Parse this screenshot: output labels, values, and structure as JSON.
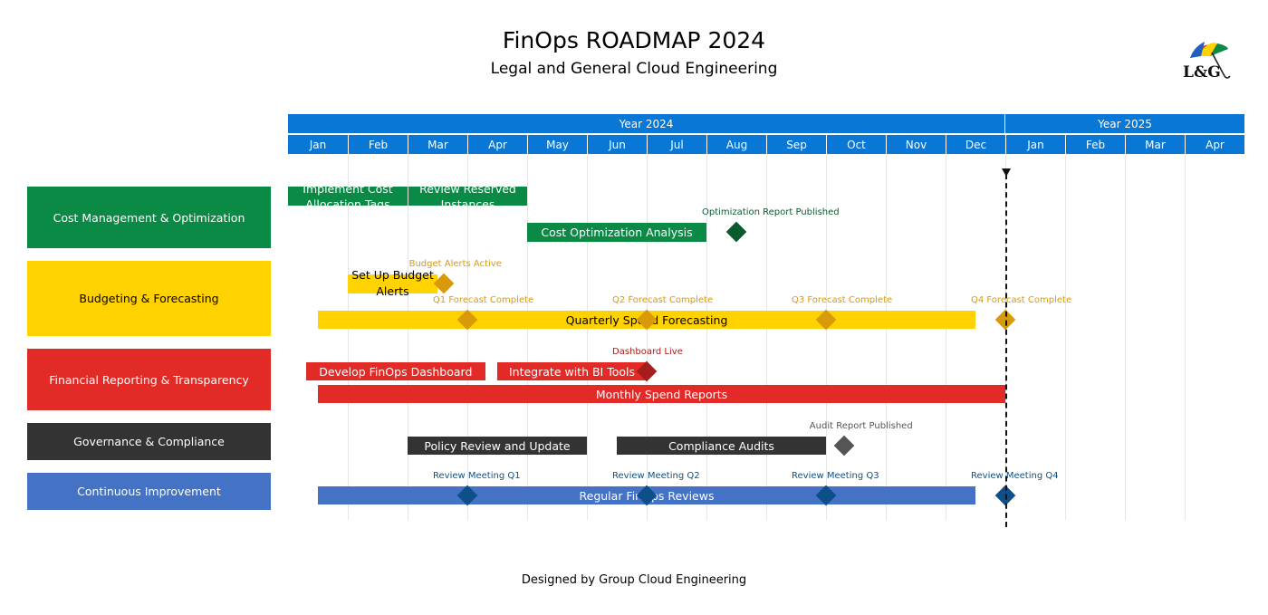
{
  "header": {
    "title": "FinOps ROADMAP 2024",
    "subtitle": "Legal and General Cloud Engineering",
    "logo_text": "L&G"
  },
  "footer": {
    "text": "Designed by Group Cloud Engineering"
  },
  "timeline": {
    "years": [
      {
        "label": "Year 2024",
        "months": 12
      },
      {
        "label": "Year 2025",
        "months": 4
      }
    ],
    "months": [
      "Jan",
      "Feb",
      "Mar",
      "Apr",
      "May",
      "Jun",
      "Jul",
      "Aug",
      "Sep",
      "Oct",
      "Nov",
      "Dec",
      "Jan",
      "Feb",
      "Mar",
      "Apr"
    ],
    "today_marker_month_index": 12
  },
  "categories": [
    {
      "id": "cost",
      "label": "Cost Management & Optimization",
      "color": "#0a8a45",
      "text_color": "#ffffff"
    },
    {
      "id": "budget",
      "label": "Budgeting & Forecasting",
      "color": "#ffd200",
      "text_color": "#000000"
    },
    {
      "id": "reporting",
      "label": "Financial Reporting & Transparency",
      "color": "#e22b26",
      "text_color": "#ffffff"
    },
    {
      "id": "governance",
      "label": "Governance & Compliance",
      "color": "#333333",
      "text_color": "#ffffff"
    },
    {
      "id": "improvement",
      "label": "Continuous Improvement",
      "color": "#4472c4",
      "text_color": "#ffffff"
    }
  ],
  "tasks": [
    {
      "id": "t1",
      "label": "Implement Cost Allocation Tags",
      "start": 0,
      "end": 2,
      "color": "#0a8a45",
      "text_color": "#ffffff"
    },
    {
      "id": "t2",
      "label": "Review Reserved Instances",
      "start": 2,
      "end": 4,
      "color": "#0a8a45",
      "text_color": "#ffffff"
    },
    {
      "id": "t3",
      "label": "Cost Optimization Analysis",
      "start": 4,
      "end": 7,
      "color": "#0a8a45",
      "text_color": "#ffffff"
    },
    {
      "id": "t4",
      "label": "Set Up Budget Alerts",
      "start": 1,
      "end": 2.5,
      "color": "#ffd200",
      "text_color": "#000000"
    },
    {
      "id": "t5",
      "label": "Quarterly Spend Forecasting",
      "start": 0.5,
      "end": 11.5,
      "color": "#ffd200",
      "text_color": "#000000"
    },
    {
      "id": "t6",
      "label": "Develop FinOps Dashboard",
      "start": 0.3,
      "end": 3.3,
      "color": "#e22b26",
      "text_color": "#ffffff"
    },
    {
      "id": "t7",
      "label": "Integrate with BI Tools",
      "start": 3.5,
      "end": 6,
      "color": "#e22b26",
      "text_color": "#ffffff"
    },
    {
      "id": "t8",
      "label": "Monthly Spend Reports",
      "start": 0.5,
      "end": 12,
      "color": "#e22b26",
      "text_color": "#ffffff"
    },
    {
      "id": "t9",
      "label": "Policy Review and Update",
      "start": 2,
      "end": 5,
      "color": "#333333",
      "text_color": "#ffffff"
    },
    {
      "id": "t10",
      "label": "Compliance Audits",
      "start": 5.5,
      "end": 9,
      "color": "#333333",
      "text_color": "#ffffff"
    },
    {
      "id": "t11",
      "label": "Regular FinOps Reviews",
      "start": 0.5,
      "end": 11.5,
      "color": "#4472c4",
      "text_color": "#ffffff"
    }
  ],
  "milestones": [
    {
      "id": "m1",
      "label": "Optimization Report Published",
      "at": 7.5,
      "color": "#0b5a2e",
      "label_color": "#0b5a2e"
    },
    {
      "id": "m2",
      "label": "Budget Alerts Active",
      "at": 2.6,
      "color": "#d89a0a",
      "label_color": "#d89a0a"
    },
    {
      "id": "m3",
      "label": "Q1 Forecast Complete",
      "at": 3,
      "color": "#d89a0a",
      "label_color": "#d89a0a"
    },
    {
      "id": "m4",
      "label": "Q2 Forecast Complete",
      "at": 6,
      "color": "#d89a0a",
      "label_color": "#d89a0a"
    },
    {
      "id": "m5",
      "label": "Q3 Forecast Complete",
      "at": 9,
      "color": "#d89a0a",
      "label_color": "#d89a0a"
    },
    {
      "id": "m6",
      "label": "Q4 Forecast Complete",
      "at": 12,
      "color": "#d89a0a",
      "label_color": "#d89a0a"
    },
    {
      "id": "m7",
      "label": "Dashboard Live",
      "at": 6,
      "color": "#a61d1d",
      "label_color": "#a61d1d"
    },
    {
      "id": "m8",
      "label": "Audit Report Published",
      "at": 9.3,
      "color": "#555555",
      "label_color": "#555555"
    },
    {
      "id": "m9",
      "label": "Review Meeting Q1",
      "at": 3,
      "color": "#0e4f8a",
      "label_color": "#0e4f8a"
    },
    {
      "id": "m10",
      "label": "Review Meeting Q2",
      "at": 6,
      "color": "#0e4f8a",
      "label_color": "#0e4f8a"
    },
    {
      "id": "m11",
      "label": "Review Meeting Q3",
      "at": 9,
      "color": "#0e4f8a",
      "label_color": "#0e4f8a"
    },
    {
      "id": "m12",
      "label": "Review Meeting Q4",
      "at": 12,
      "color": "#0e4f8a",
      "label_color": "#0e4f8a"
    }
  ]
}
